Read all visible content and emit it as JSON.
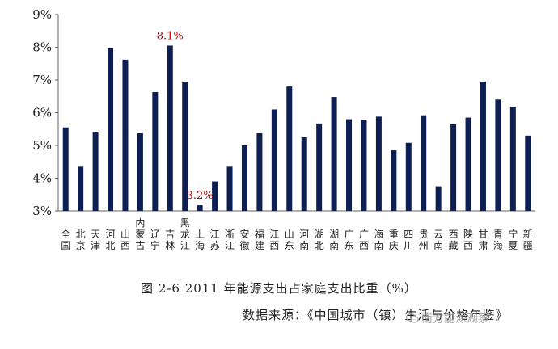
{
  "chart_data": {
    "type": "bar",
    "ylim": [
      3,
      9
    ],
    "yticks": [
      "3%",
      "4%",
      "5%",
      "6%",
      "7%",
      "8%",
      "9%"
    ],
    "categories": [
      "全国",
      "北京",
      "天津",
      "河北",
      "山西",
      "内蒙古",
      "辽宁",
      "吉林",
      "黑龙江",
      "上海",
      "江苏",
      "浙江",
      "安徽",
      "福建",
      "江西",
      "山东",
      "河南",
      "湖北",
      "湖南",
      "广东",
      "广西",
      "海南",
      "重庆",
      "四川",
      "贵州",
      "云南",
      "西藏",
      "陕西",
      "甘肃",
      "青海",
      "宁夏",
      "新疆"
    ],
    "values": [
      5.55,
      4.35,
      5.42,
      7.97,
      7.62,
      5.37,
      6.63,
      8.05,
      6.95,
      3.17,
      3.9,
      4.35,
      5.0,
      5.37,
      6.1,
      6.8,
      5.25,
      5.67,
      6.48,
      5.8,
      5.78,
      5.88,
      4.85,
      5.08,
      5.92,
      3.75,
      5.65,
      5.85,
      6.95,
      6.4,
      6.18,
      5.3
    ],
    "annotations": [
      {
        "index": 7,
        "text": "8.1%"
      },
      {
        "index": 9,
        "text": "3.2%"
      }
    ],
    "bar_color": "#0d1f52",
    "annotation_color": "#c00000",
    "grid": false
  },
  "caption": "图 2-6    2011 年能源支出占家庭支出比重（%）",
  "source": "数据来源：《中国城市（镇）生活与价格年鉴》",
  "watermark": "南方能源观察",
  "watermark_icon": "wechat-icon"
}
